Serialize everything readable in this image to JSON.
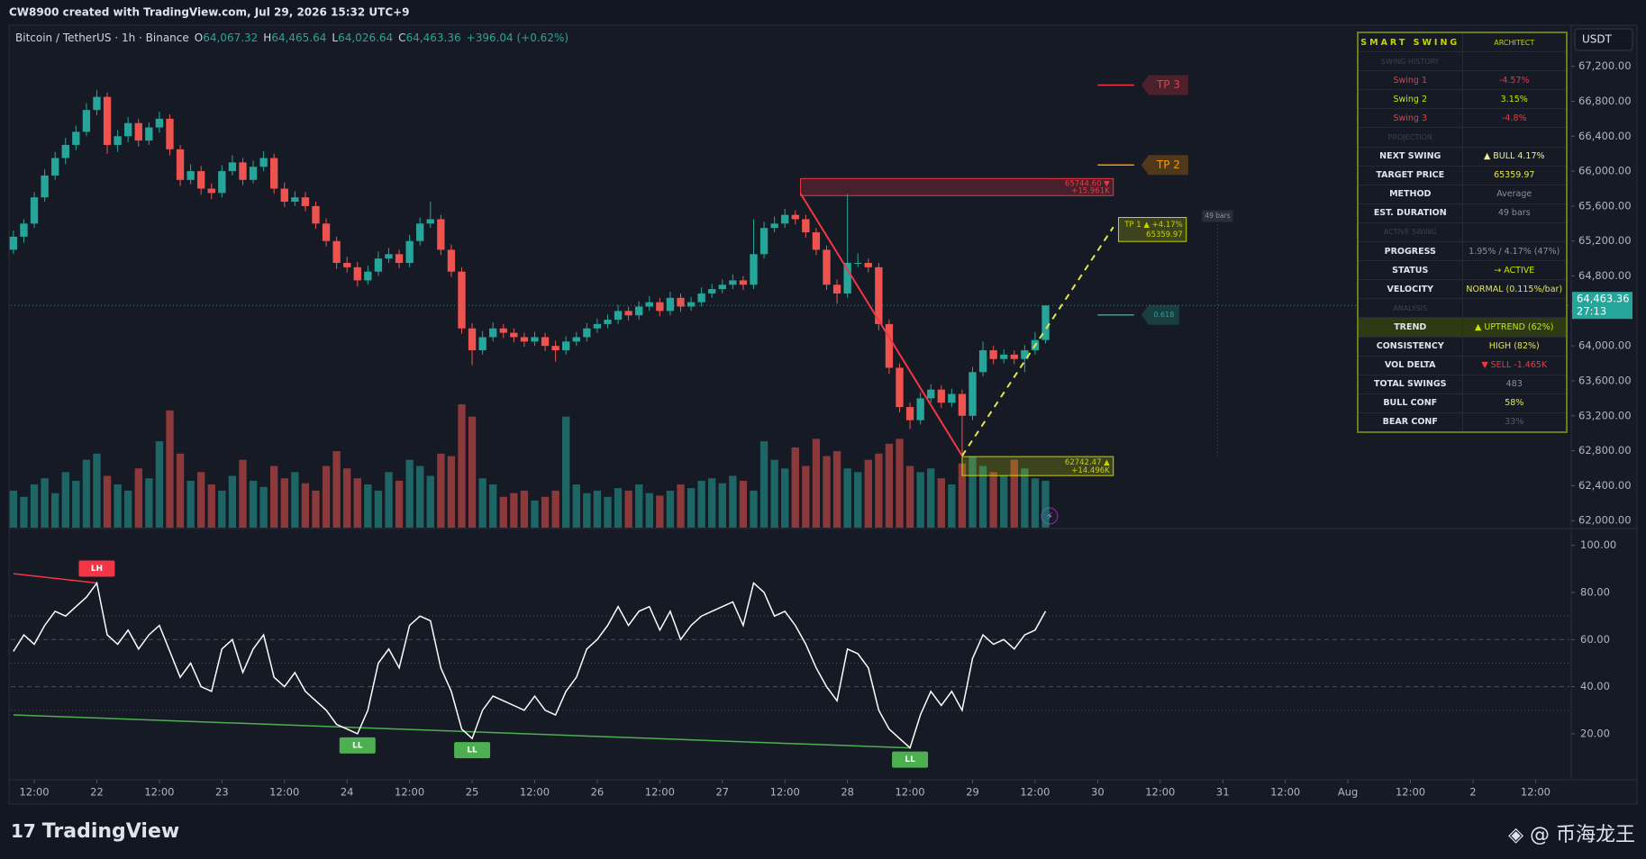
{
  "header_text": "CW8900 created with TradingView.com, Jul 29, 2026 15:32 UTC+9",
  "brand": "TradingView",
  "watermark": "@ 币海龙王",
  "chart_data": {
    "type": "candlestick",
    "title": "Bitcoin / TetherUS · 1h · Binance",
    "legend": [
      {
        "key": "O",
        "value": "64,067.32"
      },
      {
        "key": "H",
        "value": "64,465.64"
      },
      {
        "key": "L",
        "value": "64,026.64"
      },
      {
        "key": "C",
        "value": "64,463.36"
      }
    ],
    "change": "+396.04 (+0.62%)",
    "up_color": "#26a69a",
    "down_color": "#ef5350",
    "x": [
      -4,
      -2,
      0,
      2,
      4,
      6,
      8,
      10,
      12,
      14,
      16,
      18,
      20,
      22,
      24,
      26,
      28,
      30,
      32,
      34,
      36,
      38,
      40,
      42,
      44,
      46,
      48,
      50,
      52,
      54,
      56,
      58,
      60,
      62,
      64,
      66,
      68,
      70,
      72,
      74,
      76,
      78,
      80,
      82,
      84,
      86,
      88,
      90,
      92,
      94,
      96,
      98,
      100,
      102,
      104,
      106,
      108,
      110,
      112,
      114,
      116,
      118,
      120,
      122,
      124,
      126,
      128,
      130,
      132,
      134,
      136,
      138,
      140,
      142,
      144,
      146,
      148,
      150,
      152,
      154,
      156,
      158,
      160,
      162,
      164,
      166,
      168,
      170,
      172,
      174,
      176,
      178,
      180,
      182,
      184,
      186,
      188,
      190,
      192,
      194
    ],
    "ohlc": [
      [
        65100,
        65320,
        65050,
        65250
      ],
      [
        65250,
        65450,
        65180,
        65400
      ],
      [
        65400,
        65760,
        65350,
        65700
      ],
      [
        65700,
        66020,
        65650,
        65950
      ],
      [
        65950,
        66220,
        65900,
        66150
      ],
      [
        66150,
        66380,
        66080,
        66300
      ],
      [
        66300,
        66520,
        66240,
        66450
      ],
      [
        66450,
        66780,
        66400,
        66700
      ],
      [
        66700,
        66930,
        66640,
        66850
      ],
      [
        66850,
        66900,
        66200,
        66300
      ],
      [
        66300,
        66470,
        66220,
        66400
      ],
      [
        66400,
        66620,
        66330,
        66550
      ],
      [
        66550,
        66600,
        66280,
        66350
      ],
      [
        66350,
        66560,
        66300,
        66500
      ],
      [
        66500,
        66680,
        66440,
        66600
      ],
      [
        66600,
        66650,
        66180,
        66250
      ],
      [
        66250,
        66300,
        65830,
        65900
      ],
      [
        65900,
        66080,
        65850,
        66000
      ],
      [
        66000,
        66060,
        65730,
        65800
      ],
      [
        65800,
        65860,
        65680,
        65750
      ],
      [
        65750,
        66070,
        65700,
        66000
      ],
      [
        66000,
        66180,
        65950,
        66100
      ],
      [
        66100,
        66150,
        65840,
        65900
      ],
      [
        65900,
        66120,
        65860,
        66050
      ],
      [
        66050,
        66230,
        66000,
        66150
      ],
      [
        66150,
        66200,
        65740,
        65800
      ],
      [
        65800,
        65870,
        65590,
        65650
      ],
      [
        65650,
        65770,
        65600,
        65700
      ],
      [
        65700,
        65760,
        65540,
        65600
      ],
      [
        65600,
        65650,
        65340,
        65400
      ],
      [
        65400,
        65460,
        65140,
        65200
      ],
      [
        65200,
        65250,
        64880,
        64950
      ],
      [
        64950,
        65020,
        64840,
        64900
      ],
      [
        64900,
        64960,
        64680,
        64750
      ],
      [
        64750,
        64920,
        64700,
        64850
      ],
      [
        64850,
        65080,
        64800,
        65000
      ],
      [
        65000,
        65120,
        64950,
        65050
      ],
      [
        65050,
        65100,
        64890,
        64950
      ],
      [
        64950,
        65270,
        64900,
        65200
      ],
      [
        65200,
        65470,
        65150,
        65400
      ],
      [
        65400,
        65650,
        65350,
        65450
      ],
      [
        65450,
        65500,
        65040,
        65100
      ],
      [
        65100,
        65160,
        64790,
        64850
      ],
      [
        64850,
        64900,
        64140,
        64200
      ],
      [
        64200,
        64260,
        63780,
        63950
      ],
      [
        63950,
        64170,
        63900,
        64100
      ],
      [
        64100,
        64270,
        64050,
        64200
      ],
      [
        64200,
        64250,
        64090,
        64150
      ],
      [
        64150,
        64200,
        64040,
        64100
      ],
      [
        64100,
        64150,
        63990,
        64050
      ],
      [
        64050,
        64160,
        64000,
        64100
      ],
      [
        64100,
        64150,
        63940,
        64000
      ],
      [
        64000,
        64060,
        63820,
        63950
      ],
      [
        63950,
        64110,
        63900,
        64050
      ],
      [
        64050,
        64160,
        64000,
        64100
      ],
      [
        64100,
        64260,
        64050,
        64200
      ],
      [
        64200,
        64310,
        64150,
        64250
      ],
      [
        64250,
        64360,
        64200,
        64300
      ],
      [
        64300,
        64470,
        64250,
        64400
      ],
      [
        64400,
        64450,
        64290,
        64350
      ],
      [
        64350,
        64510,
        64300,
        64450
      ],
      [
        64450,
        64570,
        64400,
        64500
      ],
      [
        64500,
        64550,
        64340,
        64400
      ],
      [
        64400,
        64620,
        64350,
        64550
      ],
      [
        64550,
        64600,
        64390,
        64450
      ],
      [
        64450,
        64560,
        64400,
        64500
      ],
      [
        64500,
        64670,
        64450,
        64600
      ],
      [
        64600,
        64710,
        64550,
        64650
      ],
      [
        64650,
        64760,
        64600,
        64700
      ],
      [
        64700,
        64820,
        64650,
        64750
      ],
      [
        64750,
        64800,
        64640,
        64700
      ],
      [
        64700,
        65450,
        64650,
        65050
      ],
      [
        65050,
        65420,
        65000,
        65350
      ],
      [
        65350,
        65480,
        65300,
        65400
      ],
      [
        65400,
        65570,
        65350,
        65500
      ],
      [
        65500,
        65550,
        65390,
        65450
      ],
      [
        65450,
        65500,
        65240,
        65300
      ],
      [
        65300,
        65350,
        65040,
        65100
      ],
      [
        65100,
        65150,
        64640,
        64700
      ],
      [
        64700,
        64760,
        64480,
        64600
      ],
      [
        64600,
        65740,
        64550,
        64950
      ],
      [
        64950,
        65060,
        64900,
        64950
      ],
      [
        64950,
        65000,
        64840,
        64900
      ],
      [
        64900,
        64950,
        64180,
        64250
      ],
      [
        64250,
        64300,
        63680,
        63750
      ],
      [
        63750,
        63800,
        63240,
        63300
      ],
      [
        63300,
        63350,
        63050,
        63150
      ],
      [
        63150,
        63470,
        63100,
        63400
      ],
      [
        63400,
        63560,
        63350,
        63500
      ],
      [
        63500,
        63550,
        63290,
        63350
      ],
      [
        63350,
        63510,
        63300,
        63450
      ],
      [
        63450,
        63500,
        62742,
        63200
      ],
      [
        63200,
        63760,
        63150,
        63700
      ],
      [
        63700,
        64050,
        63650,
        63950
      ],
      [
        63950,
        64000,
        63790,
        63850
      ],
      [
        63850,
        63960,
        63800,
        63900
      ],
      [
        63900,
        63950,
        63790,
        63850
      ],
      [
        63850,
        64010,
        63700,
        63950
      ],
      [
        63950,
        64160,
        63900,
        64067.32
      ],
      [
        64067.32,
        64465.64,
        64026.64,
        64463.36
      ]
    ],
    "volume": [
      30,
      25,
      35,
      40,
      28,
      45,
      38,
      55,
      60,
      42,
      35,
      30,
      48,
      40,
      70,
      95,
      60,
      38,
      45,
      35,
      30,
      42,
      55,
      38,
      33,
      50,
      40,
      45,
      36,
      30,
      50,
      62,
      48,
      40,
      35,
      30,
      45,
      38,
      55,
      50,
      42,
      60,
      58,
      100,
      90,
      40,
      35,
      25,
      28,
      30,
      22,
      25,
      30,
      90,
      35,
      28,
      30,
      25,
      32,
      30,
      35,
      28,
      26,
      30,
      35,
      32,
      38,
      40,
      36,
      42,
      38,
      30,
      70,
      55,
      48,
      65,
      50,
      72,
      58,
      62,
      48,
      45,
      55,
      60,
      68,
      72,
      50,
      45,
      48,
      40,
      35,
      52,
      58,
      50,
      45,
      42,
      55,
      48,
      40,
      38
    ],
    "xlim": [
      -4.5,
      294.5
    ],
    "xticks": [
      {
        "value": 0,
        "label": "12:00"
      },
      {
        "value": 12,
        "label": "22"
      },
      {
        "value": 24,
        "label": "12:00"
      },
      {
        "value": 36,
        "label": "23"
      },
      {
        "value": 48,
        "label": "12:00"
      },
      {
        "value": 60,
        "label": "24"
      },
      {
        "value": 72,
        "label": "12:00"
      },
      {
        "value": 84,
        "label": "25"
      },
      {
        "value": 96,
        "label": "12:00"
      },
      {
        "value": 108,
        "label": "26"
      },
      {
        "value": 120,
        "label": "12:00"
      },
      {
        "value": 132,
        "label": "27"
      },
      {
        "value": 144,
        "label": "12:00"
      },
      {
        "value": 156,
        "label": "28"
      },
      {
        "value": 168,
        "label": "12:00"
      },
      {
        "value": 180,
        "label": "29"
      },
      {
        "value": 192,
        "label": "12:00"
      },
      {
        "value": 204,
        "label": "30"
      },
      {
        "value": 216,
        "label": "12:00"
      },
      {
        "value": 228,
        "label": "31"
      },
      {
        "value": 240,
        "label": "12:00"
      },
      {
        "value": 252,
        "label": "Aug"
      },
      {
        "value": 264,
        "label": "12:00"
      },
      {
        "value": 276,
        "label": "2"
      },
      {
        "value": 288,
        "label": "12:00"
      }
    ],
    "ylim": [
      61920,
      67660
    ],
    "yticks": [
      {
        "value": 62000,
        "label": "62,000.00"
      },
      {
        "value": 62400,
        "label": "62,400.00"
      },
      {
        "value": 62800,
        "label": "62,800.00"
      },
      {
        "value": 63200,
        "label": "63,200.00"
      },
      {
        "value": 63600,
        "label": "63,600.00"
      },
      {
        "value": 64000,
        "label": "64,000.00"
      },
      {
        "value": 64400,
        "label": "64,400.00"
      },
      {
        "value": 64800,
        "label": "64,800.00"
      },
      {
        "value": 65200,
        "label": "65,200.00"
      },
      {
        "value": 65600,
        "label": "65,600.00"
      },
      {
        "value": 66000,
        "label": "66,000.00"
      },
      {
        "value": 66400,
        "label": "66,400.00"
      },
      {
        "value": 66800,
        "label": "66,800.00"
      },
      {
        "value": 67200,
        "label": "67,200.00"
      }
    ],
    "currency": "USDT",
    "last_price": 64463.36,
    "last_price_label": "64,463.36",
    "countdown": "27:13",
    "annotations": {
      "levels": [
        {
          "label": "TP 3",
          "price": 66985,
          "color": "#f23645",
          "x": [
            204,
            211
          ]
        },
        {
          "label": "TP 2",
          "price": 66070,
          "color": "#ff9800",
          "x": [
            204,
            211
          ]
        },
        {
          "label": "0.618",
          "price": 64355,
          "color": "#26a69a",
          "x": [
            204,
            211
          ]
        }
      ],
      "boxes": [
        {
          "text": "65744.60 ▼",
          "sub": "+15.961K",
          "top": 65915,
          "bottom": 65720,
          "x": [
            147,
            207
          ],
          "color": "#f23645"
        },
        {
          "text": "62742.47 ▲",
          "sub": "+14.496K",
          "top": 62733,
          "bottom": 62516,
          "x": [
            178,
            207
          ],
          "color": "#c8d400"
        },
        {
          "text": "TP 1 ▲ +4.17%",
          "sub": "65359.97",
          "top": 65470,
          "bottom": 65195,
          "x": [
            208,
            221
          ],
          "color": "#c8d400"
        }
      ],
      "lines": [
        {
          "points": [
            [
              147,
              65744.6
            ],
            [
              178,
              62742.47
            ]
          ],
          "color": "#f23645",
          "dash": false
        },
        {
          "points": [
            [
              178,
              62742.47
            ],
            [
              207,
              65359.97
            ]
          ],
          "color": "#e6e64c",
          "dash": true
        }
      ],
      "bars_label": {
        "text": "49 bars",
        "x": 227,
        "top": 65470,
        "bottom": 62742.47
      }
    },
    "indicator": {
      "type": "line",
      "color": "#ffffff",
      "values": [
        55,
        62,
        58,
        66,
        72,
        70,
        74,
        78,
        84,
        62,
        58,
        64,
        56,
        62,
        66,
        55,
        44,
        50,
        40,
        38,
        56,
        60,
        46,
        56,
        62,
        44,
        40,
        46,
        38,
        34,
        30,
        24,
        22,
        20,
        30,
        50,
        56,
        48,
        66,
        70,
        68,
        48,
        38,
        22,
        18,
        30,
        36,
        34,
        32,
        30,
        36,
        30,
        28,
        38,
        44,
        56,
        60,
        66,
        74,
        66,
        72,
        74,
        64,
        72,
        60,
        66,
        70,
        72,
        74,
        76,
        66,
        84,
        80,
        70,
        72,
        66,
        58,
        48,
        40,
        34,
        56,
        54,
        48,
        30,
        22,
        18,
        14,
        28,
        38,
        32,
        38,
        30,
        52,
        62,
        58,
        60,
        56,
        62,
        64,
        72
      ],
      "ylim": [
        2,
        106
      ],
      "yticks": [
        {
          "value": 20,
          "label": "20.00"
        },
        {
          "value": 40,
          "label": "40.00"
        },
        {
          "value": 60,
          "label": "60.00"
        },
        {
          "value": 80,
          "label": "80.00"
        },
        {
          "value": 100,
          "label": "100.00"
        }
      ],
      "levels": [
        30,
        40,
        50,
        60,
        70
      ],
      "markers": [
        {
          "label": "LH",
          "x": 12,
          "value": 84,
          "color": "#f23645"
        },
        {
          "label": "LL",
          "x": 62,
          "value": 20,
          "color": "#4caf50"
        },
        {
          "label": "LL",
          "x": 84,
          "value": 18,
          "color": "#4caf50"
        },
        {
          "label": "LL",
          "x": 168,
          "value": 14,
          "color": "#4caf50"
        }
      ],
      "trendlines": [
        {
          "points": [
            [
              -4,
              88
            ],
            [
              12,
              84
            ]
          ],
          "color": "#f23645"
        },
        {
          "points": [
            [
              -4,
              28
            ],
            [
              168,
              14
            ]
          ],
          "color": "#4caf50"
        }
      ]
    }
  },
  "panel": {
    "title": "SMART SWING",
    "tag": "ARCHITECT",
    "rows": [
      {
        "label": "SWING HISTORY",
        "kind": "section"
      },
      {
        "label": "Swing 1",
        "value": "-4.57%",
        "color": "#f23645",
        "label_color": "#f23645"
      },
      {
        "label": "Swing 2",
        "value": "3.15%",
        "color": "#c8e600",
        "label_color": "#c8e600"
      },
      {
        "label": "Swing 3",
        "value": "-4.8%",
        "color": "#f23645",
        "label_color": "#f23645"
      },
      {
        "label": "PROJECTION",
        "kind": "section"
      },
      {
        "label": "NEXT SWING",
        "value": "▲ BULL  4.17%",
        "color": "#e8f0a0"
      },
      {
        "label": "TARGET PRICE",
        "value": "65359.97",
        "color": "#e6e64c"
      },
      {
        "label": "METHOD",
        "value": "Average",
        "color": "#8a8f9c"
      },
      {
        "label": "EST. DURATION",
        "value": "49 bars",
        "color": "#8a8f9c"
      },
      {
        "label": "ACTIVE SWING",
        "kind": "section"
      },
      {
        "label": "PROGRESS",
        "value": "1.95% / 4.17%  (47%)",
        "color": "#8a8f9c"
      },
      {
        "label": "STATUS",
        "value": "→ ACTIVE",
        "color": "#c8e600"
      },
      {
        "label": "VELOCITY",
        "value": "NORMAL  (0.115%/bar)",
        "color": "#e6e64c"
      },
      {
        "label": "ANALYSIS",
        "kind": "section"
      },
      {
        "label": "TREND",
        "value": "▲ UPTREND  (62%)",
        "color": "#c8e600",
        "kind": "highlight"
      },
      {
        "label": "CONSISTENCY",
        "value": "HIGH  (82%)",
        "color": "#e6e64c"
      },
      {
        "label": "VOL DELTA",
        "value": "▼ SELL  -1.465K",
        "color": "#f23645"
      },
      {
        "label": "TOTAL SWINGS",
        "value": "483",
        "color": "#8a8f9c"
      },
      {
        "label": "BULL CONF",
        "value": "58%",
        "color": "#e6e64c"
      },
      {
        "label": "BEAR CONF",
        "value": "33%",
        "color": "#555a66"
      }
    ]
  }
}
